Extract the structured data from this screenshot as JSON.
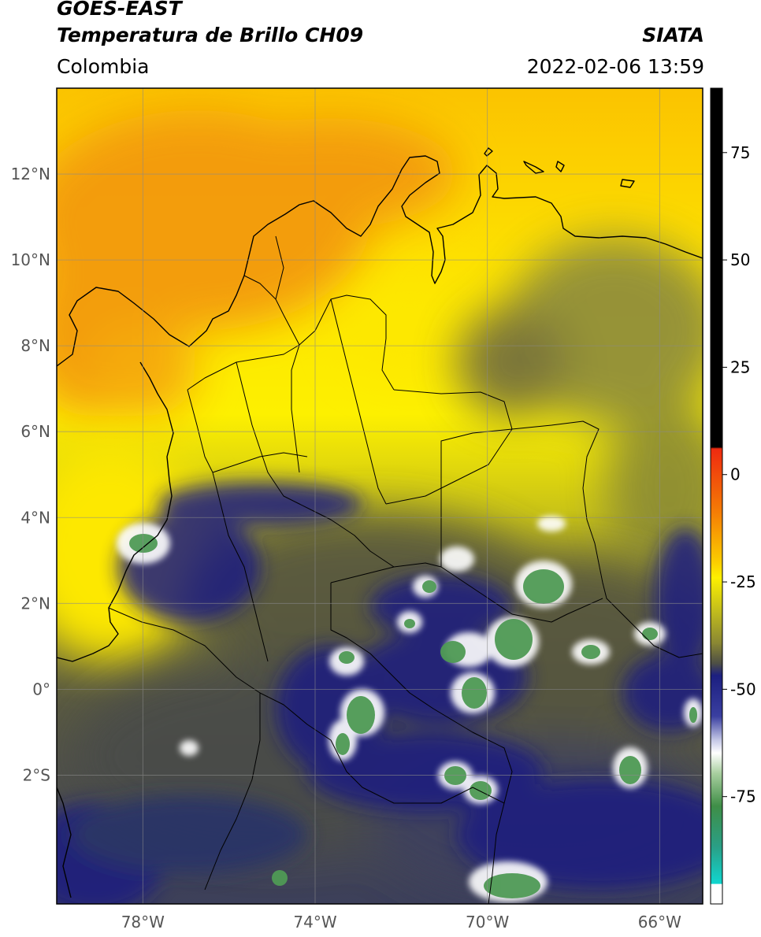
{
  "header": {
    "line1": "GOES-EAST",
    "line2": "Temperatura de Brillo CH09",
    "region": "Colombia",
    "org": "SIATA",
    "timestamp": "2022-02-06 13:59"
  },
  "map": {
    "lon_range": [
      -80,
      -65
    ],
    "lat_range": [
      -5,
      14
    ],
    "lat_ticks": [
      {
        "value": 12,
        "label": "12°N"
      },
      {
        "value": 10,
        "label": "10°N"
      },
      {
        "value": 8,
        "label": "8°N"
      },
      {
        "value": 6,
        "label": "6°N"
      },
      {
        "value": 4,
        "label": "4°N"
      },
      {
        "value": 2,
        "label": "2°N"
      },
      {
        "value": 0,
        "label": "0°"
      },
      {
        "value": -2,
        "label": "2°S"
      }
    ],
    "lon_ticks": [
      {
        "value": -78,
        "label": "78°W"
      },
      {
        "value": -74,
        "label": "74°W"
      },
      {
        "value": -70,
        "label": "70°W"
      },
      {
        "value": -66,
        "label": "66°W"
      }
    ]
  },
  "colorbar": {
    "range": [
      -100,
      90
    ],
    "ticks": [
      {
        "value": 75,
        "label": "75"
      },
      {
        "value": 50,
        "label": "50"
      },
      {
        "value": 25,
        "label": "25"
      },
      {
        "value": 0,
        "label": "0"
      },
      {
        "value": -25,
        "label": "-25"
      },
      {
        "value": -50,
        "label": "-50"
      },
      {
        "value": -75,
        "label": "-75"
      }
    ]
  },
  "colors": {
    "warm_orange": "#f39a0a",
    "yellow": "#fde800",
    "olive": "#a8a82a",
    "dark_olive": "#57573f",
    "navy": "#1c1f80",
    "white": "#ffffff",
    "green": "#4f9a55",
    "teal": "#19b3a7",
    "red": "#ee2a10",
    "black": "#000000"
  }
}
